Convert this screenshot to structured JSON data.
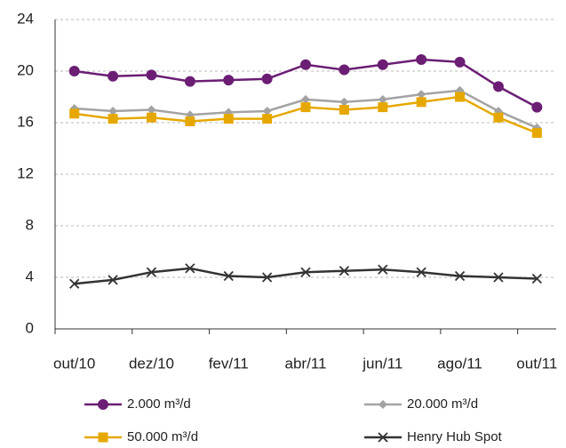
{
  "chart_data": {
    "type": "line",
    "categories": [
      "out/10",
      null,
      "dez/10",
      null,
      "fev/11",
      null,
      "abr/11",
      null,
      "jun/11",
      null,
      "ago/11",
      null,
      "out/11"
    ],
    "series": [
      {
        "name": "2.000 m³/d",
        "color": "#6b1e74",
        "marker": "circle",
        "values": [
          20.0,
          19.6,
          19.7,
          19.2,
          19.3,
          19.4,
          20.5,
          20.1,
          20.5,
          20.9,
          20.7,
          18.8,
          17.2
        ]
      },
      {
        "name": "20.000 m³/d",
        "color": "#a3a3a3",
        "marker": "diamond",
        "values": [
          17.1,
          16.9,
          17.0,
          16.6,
          16.8,
          16.9,
          17.8,
          17.6,
          17.8,
          18.2,
          18.5,
          16.9,
          15.6
        ]
      },
      {
        "name": "50.000 m³/d",
        "color": "#e6a800",
        "marker": "square",
        "values": [
          16.7,
          16.3,
          16.4,
          16.1,
          16.3,
          16.3,
          17.2,
          17.0,
          17.2,
          17.6,
          18.0,
          16.4,
          15.2
        ]
      },
      {
        "name": "Henry Hub Spot",
        "color": "#333333",
        "marker": "x",
        "values": [
          3.5,
          3.8,
          4.4,
          4.7,
          4.1,
          4.0,
          4.4,
          4.5,
          4.6,
          4.4,
          4.1,
          4.0,
          3.9
        ]
      }
    ],
    "ylim": [
      0,
      24
    ],
    "yticks": [
      0,
      4,
      8,
      12,
      16,
      20,
      24
    ],
    "grid": true
  }
}
